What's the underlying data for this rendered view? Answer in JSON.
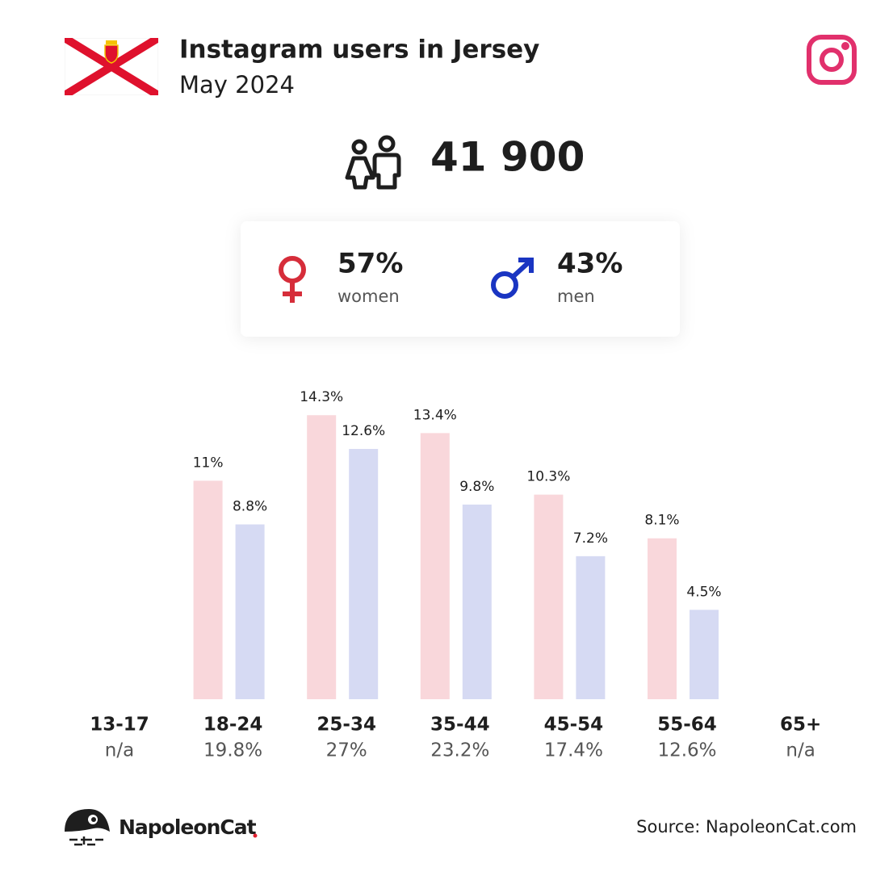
{
  "header": {
    "title": "Instagram users in Jersey",
    "subtitle": "May 2024"
  },
  "total": {
    "value": 41900,
    "label": "41 900"
  },
  "gender": {
    "values": [
      57,
      43
    ],
    "value_labels": [
      "57%",
      "43%"
    ]
  },
  "chart_data": {
    "type": "bar",
    "categories": [
      "13-17",
      "18-24",
      "25-34",
      "35-44",
      "45-54",
      "55-64",
      "65+"
    ],
    "series": [
      {
        "name": "women",
        "color": "#f9d7db",
        "values": [
          null,
          11,
          14.3,
          13.4,
          10.3,
          8.1,
          null
        ],
        "value_labels": [
          null,
          "11%",
          "14.3%",
          "13.4%",
          "10.3%",
          "8.1%",
          null
        ]
      },
      {
        "name": "men",
        "color": "#d6daf3",
        "values": [
          null,
          8.8,
          12.6,
          9.8,
          7.2,
          4.5,
          null
        ],
        "value_labels": [
          null,
          "8.8%",
          "12.6%",
          "9.8%",
          "7.2%",
          "4.5%",
          null
        ]
      }
    ],
    "totals": [
      null,
      19.8,
      27,
      23.2,
      17.4,
      12.6,
      null
    ],
    "total_labels": [
      "n/a",
      "19.8%",
      "27%",
      "23.2%",
      "17.4%",
      "12.6%",
      "n/a"
    ]
  },
  "footer": {
    "brand": "NapoleonCat",
    "source": "Source: NapoleonCat.com"
  }
}
